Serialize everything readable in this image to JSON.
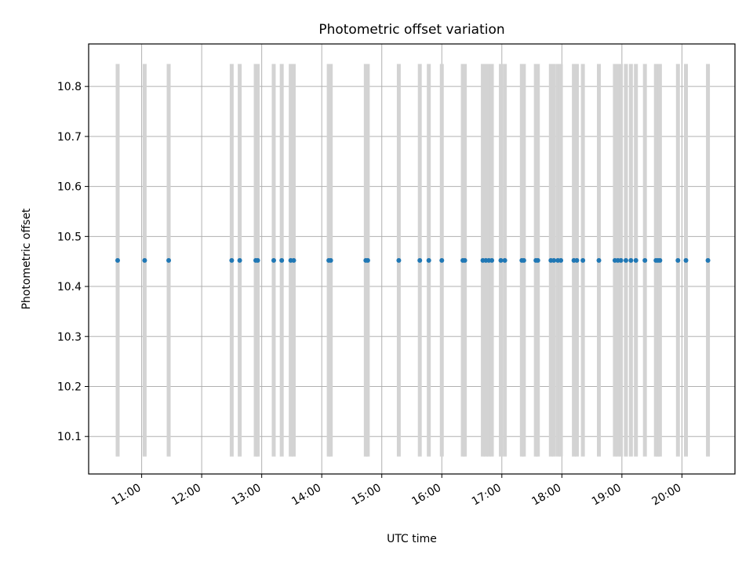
{
  "chart_data": {
    "type": "scatter",
    "title": "Photometric offset variation",
    "xlabel": "UTC time",
    "ylabel": "Photometric offset",
    "x_axis_type": "time",
    "x_range": [
      "10:07",
      "20:53"
    ],
    "x_ticks": [
      "11:00",
      "12:00",
      "13:00",
      "14:00",
      "15:00",
      "16:00",
      "17:00",
      "18:00",
      "19:00",
      "20:00"
    ],
    "ylim": [
      10.025,
      10.885
    ],
    "y_ticks": [
      "10.1",
      "10.2",
      "10.3",
      "10.4",
      "10.5",
      "10.6",
      "10.7",
      "10.8"
    ],
    "y_tick_values": [
      10.1,
      10.2,
      10.3,
      10.4,
      10.5,
      10.6,
      10.7,
      10.8
    ],
    "grid": true,
    "series": [
      {
        "color": "#1f77b4",
        "marker": "dot",
        "y_value": 10.452,
        "error_low": 10.06,
        "error_high": 10.845,
        "error_color": "#d3d3d3",
        "x": [
          "10:36",
          "11:03",
          "11:27",
          "12:30",
          "12:38",
          "12:54",
          "12:56",
          "13:12",
          "13:20",
          "13:29",
          "13:32",
          "14:07",
          "14:09",
          "14:44",
          "14:46",
          "15:17",
          "15:38",
          "15:47",
          "16:00",
          "16:21",
          "16:23",
          "16:41",
          "16:44",
          "16:47",
          "16:50",
          "16:59",
          "17:03",
          "17:20",
          "17:22",
          "17:34",
          "17:36",
          "17:49",
          "17:52",
          "17:56",
          "17:59",
          "18:12",
          "18:15",
          "18:21",
          "18:37",
          "18:53",
          "18:56",
          "18:59",
          "19:04",
          "19:09",
          "19:14",
          "19:23",
          "19:34",
          "19:36",
          "19:38",
          "19:56",
          "20:04",
          "20:26"
        ]
      }
    ]
  }
}
